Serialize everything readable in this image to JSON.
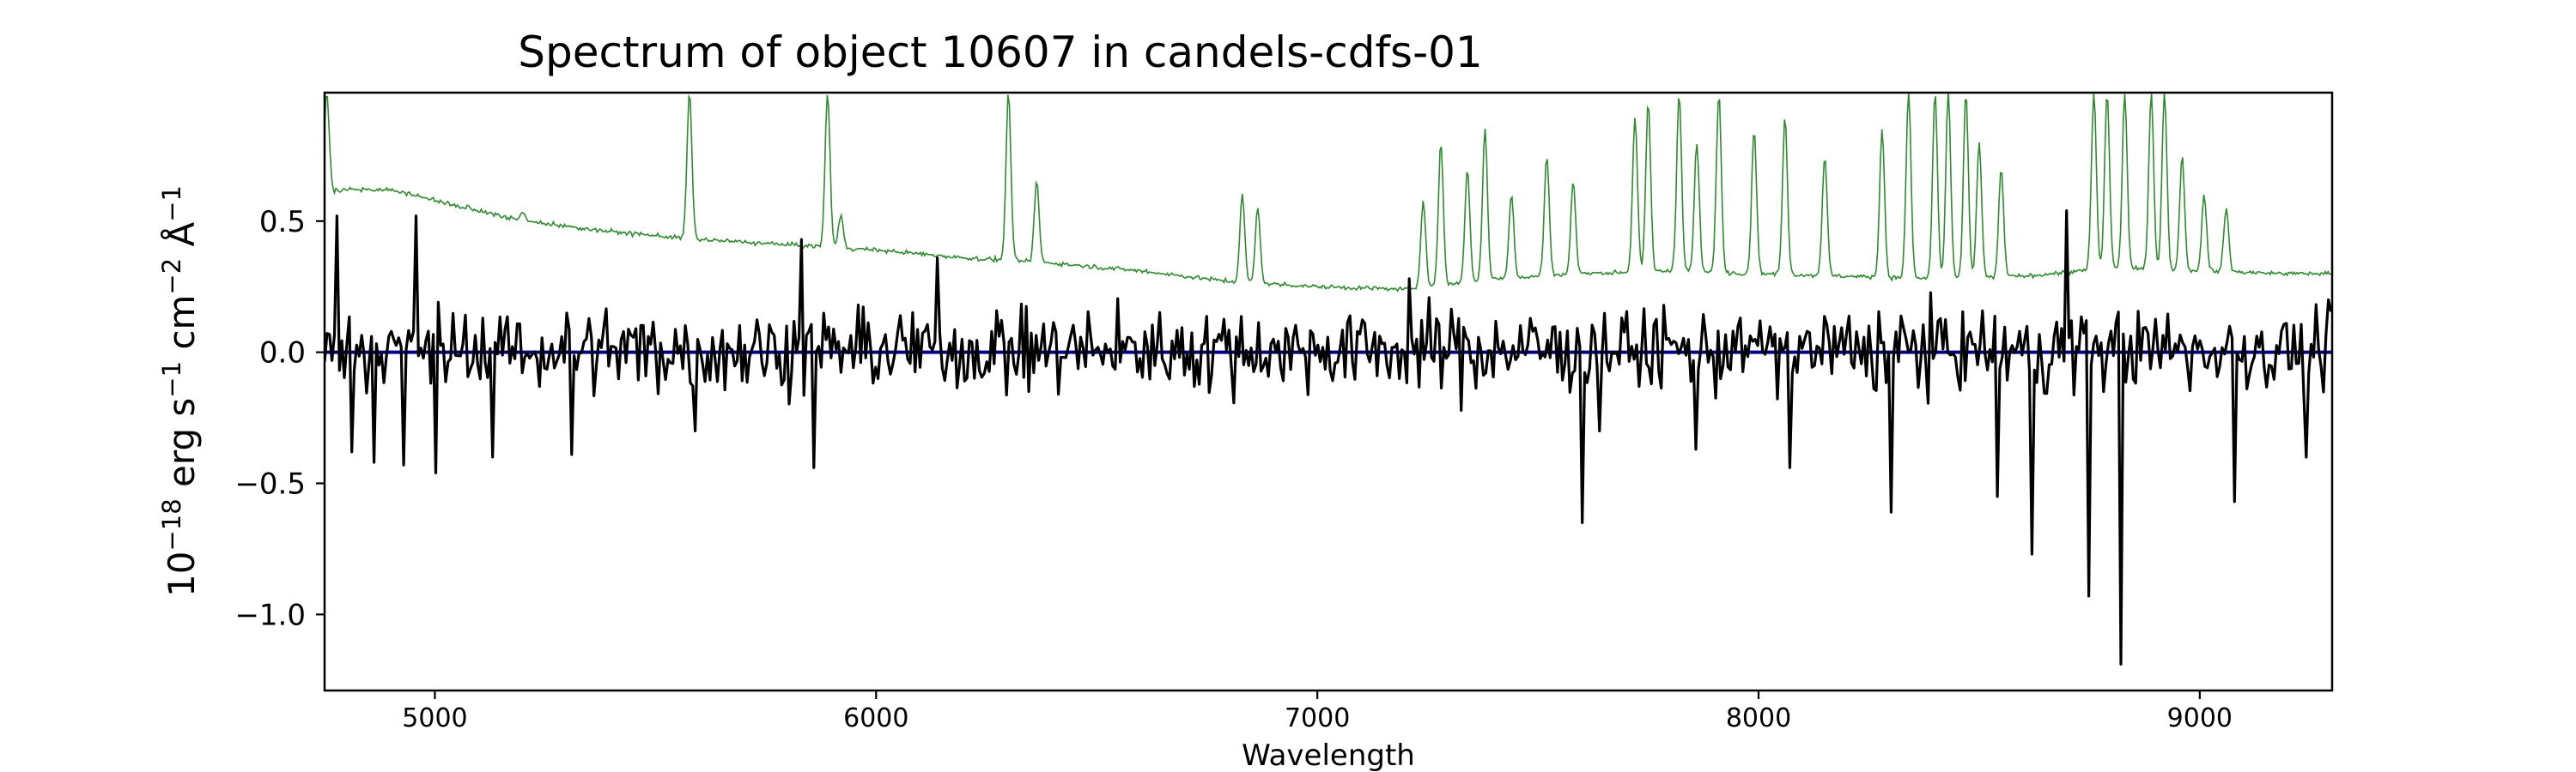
{
  "chart_data": {
    "type": "line",
    "title": "Spectrum of object 10607 in candels-cdfs-01",
    "xlabel": "Wavelength",
    "ylabel_parts": [
      "10",
      "−18",
      " erg s",
      "−1",
      " cm",
      "−2",
      " Å",
      "−1"
    ],
    "xlim": [
      4750,
      9300
    ],
    "ylim": [
      -1.29,
      0.99
    ],
    "x_ticks": [
      5000,
      6000,
      7000,
      8000,
      9000
    ],
    "x_tick_labels": [
      "5000",
      "6000",
      "7000",
      "8000",
      "9000"
    ],
    "y_ticks": [
      0.5,
      0.0,
      -0.5,
      -1.0
    ],
    "y_tick_labels": [
      "0.5",
      "0.0",
      "−0.5",
      "−1.0"
    ],
    "grid": false,
    "legend": "none",
    "series": [
      {
        "role": "sky-noise",
        "color": "#2e8b2e",
        "baseline": [
          [
            4750,
            0.61
          ],
          [
            4800,
            0.62
          ],
          [
            4900,
            0.62
          ],
          [
            5000,
            0.58
          ],
          [
            5100,
            0.54
          ],
          [
            5200,
            0.5
          ],
          [
            5400,
            0.46
          ],
          [
            5600,
            0.43
          ],
          [
            5800,
            0.41
          ],
          [
            6000,
            0.39
          ],
          [
            6200,
            0.36
          ],
          [
            6400,
            0.34
          ],
          [
            6600,
            0.31
          ],
          [
            6800,
            0.27
          ],
          [
            7000,
            0.25
          ],
          [
            7200,
            0.24
          ],
          [
            7400,
            0.28
          ],
          [
            7600,
            0.3
          ],
          [
            7800,
            0.31
          ],
          [
            8000,
            0.3
          ],
          [
            8200,
            0.29
          ],
          [
            8400,
            0.28
          ],
          [
            8600,
            0.29
          ],
          [
            8800,
            0.32
          ],
          [
            9000,
            0.31
          ],
          [
            9200,
            0.3
          ],
          [
            9300,
            0.3
          ]
        ],
        "emission_lines": [
          [
            4755,
            0.99
          ],
          [
            5577,
            0.99
          ],
          [
            5890,
            0.99
          ],
          [
            6300,
            0.99
          ],
          [
            6364,
            0.65
          ],
          [
            5200,
            0.54
          ],
          [
            5920,
            0.52
          ],
          [
            6830,
            0.6
          ],
          [
            6865,
            0.55
          ],
          [
            7240,
            0.58
          ],
          [
            7280,
            0.8
          ],
          [
            7340,
            0.7
          ],
          [
            7380,
            0.85
          ],
          [
            7440,
            0.6
          ],
          [
            7520,
            0.75
          ],
          [
            7580,
            0.65
          ],
          [
            7720,
            0.9
          ],
          [
            7750,
            0.95
          ],
          [
            7820,
            0.99
          ],
          [
            7860,
            0.8
          ],
          [
            7910,
            0.99
          ],
          [
            7990,
            0.85
          ],
          [
            8060,
            0.9
          ],
          [
            8150,
            0.75
          ],
          [
            8280,
            0.85
          ],
          [
            8340,
            0.99
          ],
          [
            8400,
            0.99
          ],
          [
            8430,
            0.99
          ],
          [
            8470,
            0.99
          ],
          [
            8500,
            0.8
          ],
          [
            8550,
            0.7
          ],
          [
            8760,
            0.99
          ],
          [
            8790,
            0.99
          ],
          [
            8830,
            0.99
          ],
          [
            8890,
            0.99
          ],
          [
            8920,
            0.99
          ],
          [
            8960,
            0.75
          ],
          [
            9010,
            0.6
          ],
          [
            9060,
            0.55
          ]
        ]
      },
      {
        "role": "spectrum-flux",
        "color": "#000000",
        "noise_amplitude": 0.18,
        "notable_points": [
          [
            4780,
            0.52
          ],
          [
            4810,
            -0.38
          ],
          [
            4860,
            -0.42
          ],
          [
            4930,
            -0.43
          ],
          [
            4960,
            0.52
          ],
          [
            5000,
            -0.46
          ],
          [
            5130,
            -0.4
          ],
          [
            5310,
            -0.39
          ],
          [
            5590,
            -0.3
          ],
          [
            5830,
            0.43
          ],
          [
            5860,
            -0.44
          ],
          [
            6140,
            0.36
          ],
          [
            7210,
            0.28
          ],
          [
            7600,
            -0.65
          ],
          [
            7640,
            -0.3
          ],
          [
            7860,
            -0.37
          ],
          [
            8070,
            -0.44
          ],
          [
            8300,
            -0.61
          ],
          [
            8540,
            -0.55
          ],
          [
            8620,
            -0.77
          ],
          [
            8700,
            0.54
          ],
          [
            8750,
            -0.93
          ],
          [
            8820,
            -1.19
          ],
          [
            9080,
            -0.57
          ],
          [
            9240,
            -0.4
          ]
        ]
      },
      {
        "role": "zero-baseline",
        "color": "#00008b",
        "constant": 0.0
      }
    ]
  }
}
